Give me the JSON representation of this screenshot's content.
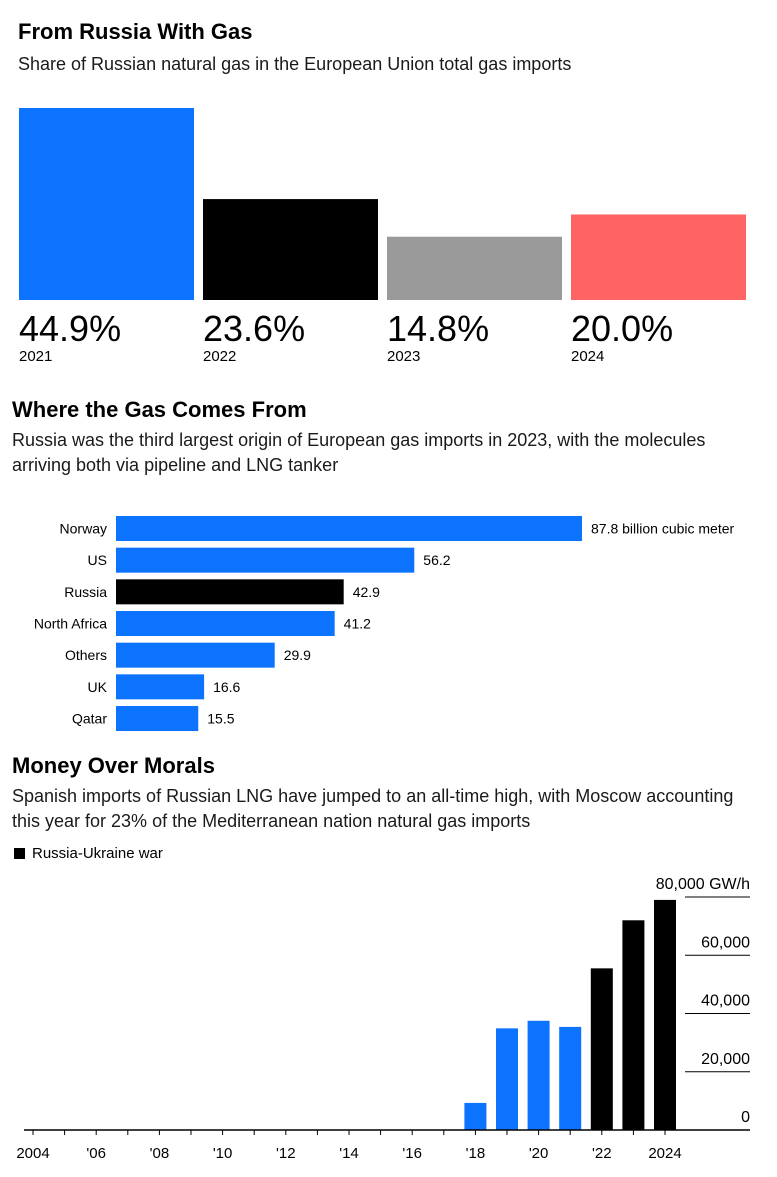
{
  "chart_data": [
    {
      "type": "bar",
      "title": "From Russia With Gas",
      "subtitle": "Share of Russian natural gas in the European Union total gas imports",
      "categories": [
        "2021",
        "2022",
        "2023",
        "2024"
      ],
      "values": [
        44.9,
        23.6,
        14.8,
        20.0
      ],
      "value_labels": [
        "44.9%",
        "23.6%",
        "14.8%",
        "20.0%"
      ],
      "colors": [
        "#0c73ff",
        "#000000",
        "#9a9a9a",
        "#ff6464"
      ],
      "ylim": [
        0,
        44.9
      ]
    },
    {
      "type": "bar",
      "orientation": "horizontal",
      "title": "Where the Gas Comes From",
      "subtitle": "Russia was the third largest origin of European gas imports in 2023, with the molecules arriving both via pipeline and LNG tanker",
      "categories": [
        "Norway",
        "US",
        "Russia",
        "North Africa",
        "Others",
        "UK",
        "Qatar"
      ],
      "values": [
        87.8,
        56.2,
        42.9,
        41.2,
        29.9,
        16.6,
        15.5
      ],
      "value_labels": [
        "87.8 billion cubic meter",
        "56.2",
        "42.9",
        "41.2",
        "29.9",
        "16.6",
        "15.5"
      ],
      "colors": [
        "#0c73ff",
        "#0c73ff",
        "#000000",
        "#0c73ff",
        "#0c73ff",
        "#0c73ff",
        "#0c73ff"
      ],
      "xlim": [
        0,
        87.8
      ]
    },
    {
      "type": "bar",
      "title": "Money Over Morals",
      "subtitle": "Spanish imports of Russian LNG have jumped to an all-time high, with Moscow accounting this year for 23% of the Mediterranean nation natural gas imports",
      "legend": [
        {
          "label": "Russia-Ukraine war",
          "color": "#000000"
        }
      ],
      "x": [
        2004,
        2005,
        2006,
        2007,
        2008,
        2009,
        2010,
        2011,
        2012,
        2013,
        2014,
        2015,
        2016,
        2017,
        2018,
        2019,
        2020,
        2021,
        2022,
        2023,
        2024
      ],
      "values": [
        0,
        0,
        0,
        0,
        0,
        0,
        0,
        0,
        0,
        0,
        0,
        0,
        0,
        0,
        9300,
        34900,
        37500,
        35400,
        55500,
        72000,
        79000
      ],
      "war_years": [
        2022,
        2023,
        2024
      ],
      "colors": {
        "normal": "#0c73ff",
        "war": "#000000"
      },
      "ylim": [
        0,
        80000
      ],
      "yticks": [
        0,
        20000,
        40000,
        60000,
        80000
      ],
      "ytick_labels": [
        "0",
        "20,000",
        "40,000",
        "60,000",
        "80,000 GW/h"
      ],
      "xticks": [
        2004,
        2006,
        2008,
        2010,
        2012,
        2014,
        2016,
        2018,
        2020,
        2022,
        2024
      ],
      "xtick_labels": [
        "2004",
        "'06",
        "'08",
        "'10",
        "'12",
        "'14",
        "'16",
        "'18",
        "'20",
        "'22",
        "2024"
      ],
      "y_axis_side": "right"
    }
  ]
}
